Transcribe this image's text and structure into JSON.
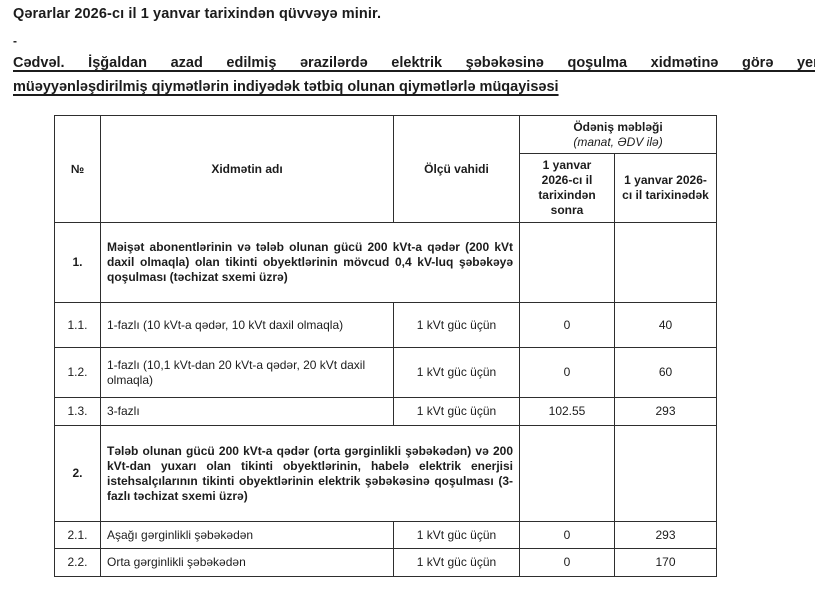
{
  "doc": {
    "heading": "Qərarlar 2026-cı il 1 yanvar tarixindən qüvvəyə minir.",
    "dash": "-",
    "table_title_line1": "Cədvəl. İşğaldan azad edilmiş ərazilərdə elektrik şəbəkəsinə qoşulma xidmətinə görə yeni",
    "table_title_line2": "müəyyənləşdirilmiş qiymətlərin indiyədək tətbiq olunan qiymətlərlə müqayisəsi"
  },
  "colors": {
    "background": "#ffffff",
    "text": "#1c1c1c",
    "table_border": "#2e2e2e"
  },
  "table": {
    "headers": {
      "no": "№",
      "service": "Xidmətin adı",
      "unit": "Ölçü vahidi",
      "payment_group": "Ödəniş məbləği",
      "payment_note": "(manat, ƏDV ilə)",
      "after": "1 yanvar 2026-cı il tarixindən sonra",
      "before": "1 yanvar 2026-cı il tarixinədək"
    },
    "rows": [
      {
        "no": "1.",
        "service": "Məişət abonentlərinin və tələb olunan gücü 200 kVt-a qədər (200 kVt daxil olmaqla) olan tikinti obyektlərinin mövcud 0,4 kV-luq şəbəkəyə qoşulması (təchizat sxemi üzrə)",
        "unit": "",
        "after": "",
        "before": ""
      },
      {
        "no": "1.1.",
        "service": "1-fazlı (10 kVt-a qədər, 10 kVt daxil olmaqla)",
        "unit": "1 kVt güc üçün",
        "after": "0",
        "before": "40"
      },
      {
        "no": "1.2.",
        "service": "1-fazlı (10,1 kVt-dan 20 kVt-a qədər, 20 kVt daxil olmaqla)",
        "unit": "1 kVt güc üçün",
        "after": "0",
        "before": "60"
      },
      {
        "no": "1.3.",
        "service": "3-fazlı",
        "unit": "1 kVt güc üçün",
        "after": "102.55",
        "before": "293"
      },
      {
        "no": "2.",
        "service": "Tələb olunan gücü 200 kVt-a qədər (orta gərginlikli şəbəkədən) və 200 kVt-dan yuxarı olan tikinti obyektlərinin, habelə elektrik enerjisi istehsalçılarının tikinti obyektlərinin elektrik şəbəkəsinə qoşulması (3-fazlı təchizat sxemi üzrə)",
        "unit": "",
        "after": "",
        "before": ""
      },
      {
        "no": "2.1.",
        "service": "Aşağı gərginlikli şəbəkədən",
        "unit": "1 kVt güc üçün",
        "after": "0",
        "before": "293"
      },
      {
        "no": "2.2.",
        "service": "Orta gərginlikli şəbəkədən",
        "unit": "1 kVt güc üçün",
        "after": "0",
        "before": "170"
      }
    ]
  }
}
